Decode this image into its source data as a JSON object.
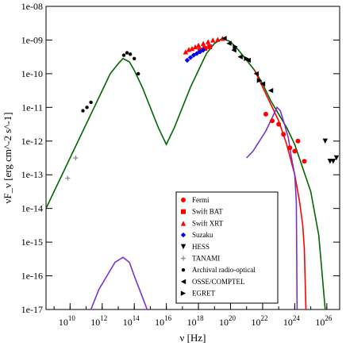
{
  "chart_data": {
    "type": "scatter",
    "title": "",
    "xlabel": "ν [Hz]",
    "ylabel": "νF_ν [erg cm^-2 s^-1]",
    "x_scale": "log",
    "y_scale": "log",
    "xlim_exp": [
      8.5,
      26.8
    ],
    "ylim_exp": [
      -17,
      -8
    ],
    "grid": false,
    "legend_position": "lower-right",
    "x_ticks": [
      {
        "exp": 10,
        "label": "10",
        "sup": "10"
      },
      {
        "exp": 12,
        "label": "10",
        "sup": "12"
      },
      {
        "exp": 14,
        "label": "10",
        "sup": "14"
      },
      {
        "exp": 16,
        "label": "10",
        "sup": "16"
      },
      {
        "exp": 18,
        "label": "10",
        "sup": "18"
      },
      {
        "exp": 20,
        "label": "10",
        "sup": "20"
      },
      {
        "exp": 22,
        "label": "10",
        "sup": "22"
      },
      {
        "exp": 24,
        "label": "10",
        "sup": "24"
      },
      {
        "exp": 26,
        "label": "10",
        "sup": "26"
      }
    ],
    "y_ticks": [
      {
        "exp": -8,
        "label": "1e-08"
      },
      {
        "exp": -9,
        "label": "1e-09"
      },
      {
        "exp": -10,
        "label": "1e-10"
      },
      {
        "exp": -11,
        "label": "1e-11"
      },
      {
        "exp": -12,
        "label": "1e-12"
      },
      {
        "exp": -13,
        "label": "1e-13"
      },
      {
        "exp": -14,
        "label": "1e-14"
      },
      {
        "exp": -15,
        "label": "1e-15"
      },
      {
        "exp": -16,
        "label": "1e-16"
      },
      {
        "exp": -17,
        "label": "1e-17"
      }
    ],
    "series": [
      {
        "name": "Fermi",
        "marker": "circle",
        "color": "#ff0000",
        "points": [
          [
            22.2,
            -11.2
          ],
          [
            22.6,
            -11.4
          ],
          [
            23.0,
            -11.5
          ],
          [
            23.3,
            -11.8
          ],
          [
            23.7,
            -12.2
          ],
          [
            24.0,
            -12.3
          ],
          [
            24.2,
            -12.0
          ],
          [
            24.6,
            -12.6
          ]
        ]
      },
      {
        "name": "Swift BAT",
        "marker": "square",
        "color": "#ff0000",
        "points": [
          [
            18.1,
            -9.3
          ],
          [
            18.4,
            -9.25
          ],
          [
            18.7,
            -9.2
          ]
        ]
      },
      {
        "name": "Swift XRT",
        "marker": "triangle",
        "color": "#ff0000",
        "points": [
          [
            17.2,
            -9.35
          ],
          [
            17.4,
            -9.28
          ],
          [
            17.6,
            -9.25
          ],
          [
            17.8,
            -9.2
          ],
          [
            18.0,
            -9.15
          ],
          [
            18.3,
            -9.1
          ],
          [
            18.6,
            -9.05
          ],
          [
            18.9,
            -9.0
          ],
          [
            19.2,
            -8.98
          ],
          [
            19.5,
            -8.95
          ]
        ]
      },
      {
        "name": "Suzaku",
        "marker": "diamond",
        "color": "#0000ff",
        "points": [
          [
            17.3,
            -9.6
          ],
          [
            17.5,
            -9.52
          ],
          [
            17.7,
            -9.45
          ],
          [
            17.9,
            -9.4
          ],
          [
            18.1,
            -9.35
          ],
          [
            18.3,
            -9.3
          ]
        ]
      },
      {
        "name": "HESS",
        "marker": "triangle-down",
        "color": "#000000",
        "points": [
          [
            25.9,
            -12.0
          ],
          [
            26.2,
            -12.6
          ],
          [
            26.4,
            -12.6
          ],
          [
            26.6,
            -12.5
          ]
        ]
      },
      {
        "name": "TANAMI",
        "marker": "plus",
        "color": "#888888",
        "points": [
          [
            9.85,
            -13.1
          ],
          [
            10.35,
            -12.5
          ]
        ]
      },
      {
        "name": "Archival radio-optical",
        "marker": "circle-small",
        "color": "#000000",
        "points": [
          [
            10.8,
            -11.1
          ],
          [
            11.05,
            -11.0
          ],
          [
            11.3,
            -10.85
          ],
          [
            13.35,
            -9.45
          ],
          [
            13.55,
            -9.38
          ],
          [
            13.75,
            -9.42
          ],
          [
            14.0,
            -9.55
          ],
          [
            14.25,
            -10.0
          ]
        ]
      },
      {
        "name": "OSSE/COMPTEL",
        "marker": "triangle-left",
        "color": "#000000",
        "points": [
          [
            19.6,
            -8.95
          ],
          [
            19.9,
            -9.1
          ],
          [
            20.2,
            -9.3
          ],
          [
            20.6,
            -9.5
          ],
          [
            21.1,
            -9.6
          ],
          [
            21.6,
            -10.0
          ],
          [
            22.0,
            -10.3
          ],
          [
            22.5,
            -10.5
          ]
        ]
      },
      {
        "name": "EGRET",
        "marker": "triangle-right",
        "color": "#000000",
        "points": [
          [
            20.3,
            -9.2
          ],
          [
            21.0,
            -9.55
          ],
          [
            21.8,
            -10.2
          ]
        ]
      }
    ],
    "curves": [
      {
        "role": "total-model",
        "color": "#006600",
        "points": [
          [
            8.5,
            -14.0
          ],
          [
            9.0,
            -13.5
          ],
          [
            10.0,
            -12.5
          ],
          [
            11.0,
            -11.5
          ],
          [
            12.0,
            -10.5
          ],
          [
            12.5,
            -10.0
          ],
          [
            13.0,
            -9.7
          ],
          [
            13.3,
            -9.55
          ],
          [
            13.7,
            -9.65
          ],
          [
            14.0,
            -9.9
          ],
          [
            14.5,
            -10.4
          ],
          [
            15.0,
            -11.0
          ],
          [
            15.5,
            -11.6
          ],
          [
            16.0,
            -12.1
          ],
          [
            16.5,
            -11.6
          ],
          [
            17.0,
            -11.0
          ],
          [
            17.5,
            -10.4
          ],
          [
            18.0,
            -9.9
          ],
          [
            18.5,
            -9.4
          ],
          [
            19.0,
            -9.1
          ],
          [
            19.5,
            -8.95
          ],
          [
            20.0,
            -9.05
          ],
          [
            20.5,
            -9.3
          ],
          [
            21.0,
            -9.6
          ],
          [
            21.5,
            -9.9
          ],
          [
            22.0,
            -10.3
          ],
          [
            22.5,
            -10.8
          ],
          [
            23.0,
            -11.2
          ],
          [
            23.5,
            -11.6
          ],
          [
            24.0,
            -12.1
          ],
          [
            24.5,
            -12.8
          ],
          [
            25.0,
            -13.5
          ],
          [
            25.5,
            -14.8
          ],
          [
            25.9,
            -17.0
          ]
        ]
      },
      {
        "role": "component-red",
        "color": "#ff0000",
        "points": [
          [
            21.5,
            -9.9
          ],
          [
            22.0,
            -10.4
          ],
          [
            22.5,
            -10.9
          ],
          [
            23.0,
            -11.4
          ],
          [
            23.5,
            -12.1
          ],
          [
            24.0,
            -13.0
          ],
          [
            24.3,
            -13.8
          ],
          [
            24.5,
            -14.5
          ],
          [
            24.6,
            -15.2
          ],
          [
            24.7,
            -17.0
          ]
        ]
      },
      {
        "role": "component-purple-low",
        "color": "#7733cc",
        "points": [
          [
            11.3,
            -17.0
          ],
          [
            11.8,
            -16.4
          ],
          [
            12.3,
            -16.0
          ],
          [
            12.8,
            -15.6
          ],
          [
            13.3,
            -15.45
          ],
          [
            13.7,
            -15.6
          ],
          [
            14.0,
            -16.0
          ],
          [
            14.4,
            -16.5
          ],
          [
            14.8,
            -17.0
          ]
        ]
      },
      {
        "role": "component-purple-high",
        "color": "#7733cc",
        "points": [
          [
            21.0,
            -12.5
          ],
          [
            21.4,
            -12.3
          ],
          [
            21.8,
            -12.0
          ],
          [
            22.2,
            -11.7
          ],
          [
            22.6,
            -11.3
          ],
          [
            22.9,
            -11.0
          ],
          [
            23.1,
            -11.1
          ],
          [
            23.3,
            -11.4
          ],
          [
            23.6,
            -11.9
          ],
          [
            23.8,
            -12.5
          ],
          [
            24.0,
            -13.0
          ],
          [
            24.1,
            -13.8
          ],
          [
            24.15,
            -17.0
          ]
        ]
      }
    ]
  }
}
